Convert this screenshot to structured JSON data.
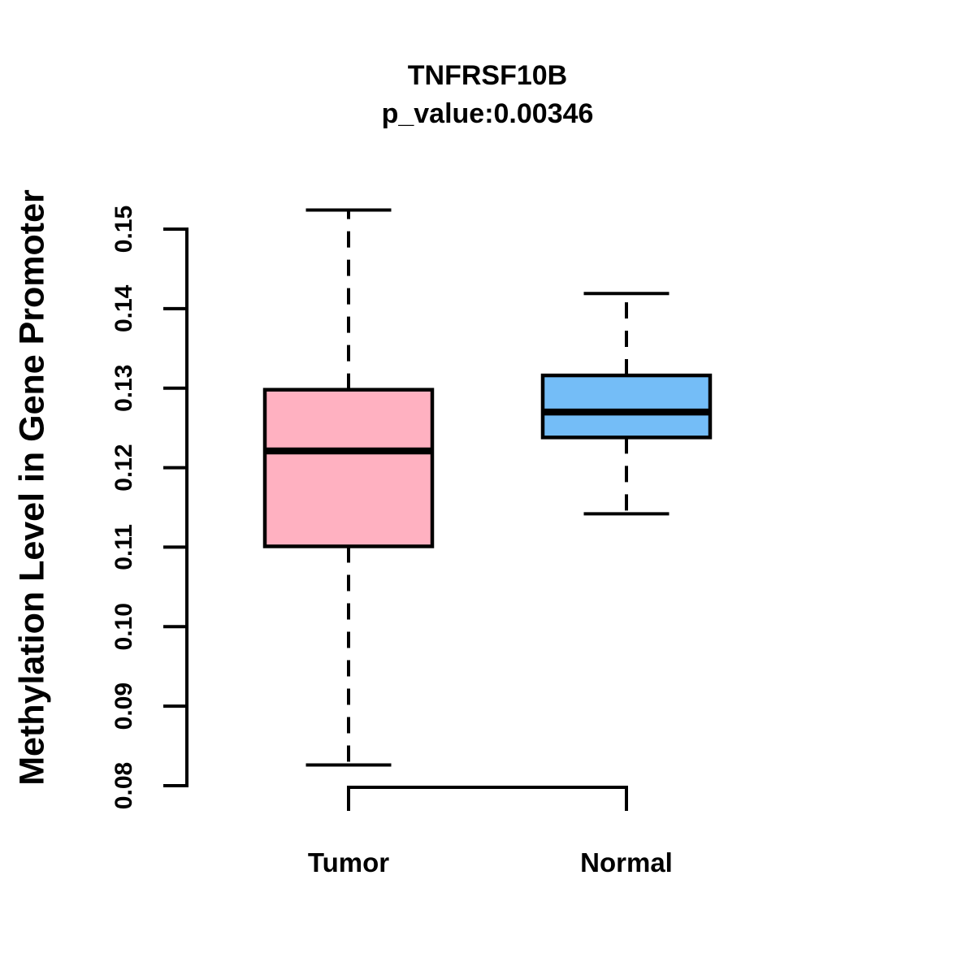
{
  "chart_data": {
    "type": "boxplot",
    "title": "TNFRSF10B",
    "subtitle": "p_value:0.00346",
    "p_value": 0.00346,
    "ylabel": "Methylation Level in Gene Promoter",
    "xlabel": "",
    "categories": [
      "Tumor",
      "Normal"
    ],
    "ytick_labels": [
      "0.08",
      "0.09",
      "0.10",
      "0.11",
      "0.12",
      "0.13",
      "0.14",
      "0.15"
    ],
    "yticks": [
      0.08,
      0.09,
      0.1,
      0.11,
      0.12,
      0.13,
      0.14,
      0.15
    ],
    "ylim": [
      0.0795,
      0.1553
    ],
    "grid": false,
    "legend": false,
    "whisker_style": "dashed",
    "colors": {
      "axis": "#000000",
      "box_border": "#000000",
      "median": "#000000",
      "tumor_fill": "#FFB1C1",
      "normal_fill": "#74BDF7"
    },
    "series": [
      {
        "name": "Tumor",
        "fill": "#FFB1C1",
        "whisker_low": 0.0826,
        "q1": 0.1101,
        "median": 0.1221,
        "q3": 0.1298,
        "whisker_high": 0.1524
      },
      {
        "name": "Normal",
        "fill": "#74BDF7",
        "whisker_low": 0.1142,
        "q1": 0.1238,
        "median": 0.127,
        "q3": 0.1316,
        "whisker_high": 0.1419
      }
    ]
  }
}
